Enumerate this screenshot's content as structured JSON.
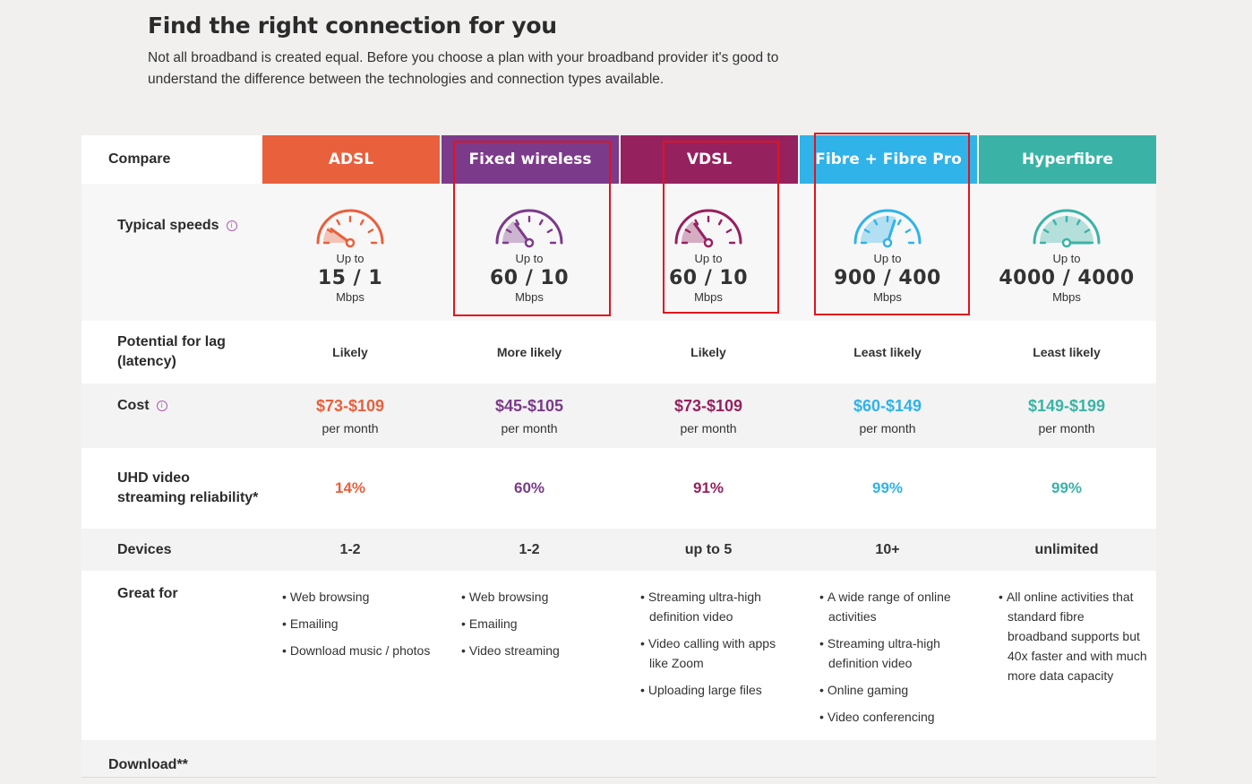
{
  "intro": {
    "title": "Find the right connection for you",
    "text": "Not all broadband is created equal. Before you choose a plan with your broadband provider it's good to understand the difference between the technologies and connection types available."
  },
  "labels": {
    "compare": "Compare",
    "typical_speeds": "Typical speeds",
    "lag": "Potential for lag (latency)",
    "cost": "Cost",
    "uhd": "UHD video streaming reliability*",
    "devices": "Devices",
    "great_for": "Great for",
    "download": "Download**",
    "info_glyph": "i",
    "up_to": "Up to",
    "mbps": "Mbps",
    "per_month": "per month"
  },
  "columns": [
    {
      "name": "ADSL",
      "color": "#e8603c",
      "gauge_level": 0.2,
      "speed": "15 / 1",
      "lag": "Likely",
      "cost": "$73-$109",
      "uhd": "14%",
      "devices": "1-2",
      "great_for": [
        "Web browsing",
        "Emailing",
        "Download music / photos"
      ]
    },
    {
      "name": "Fixed wireless",
      "color": "#7c3a8a",
      "gauge_level": 0.3,
      "speed": "60 / 10",
      "lag": "More likely",
      "cost": "$45-$105",
      "uhd": "60%",
      "devices": "1-2",
      "great_for": [
        "Web browsing",
        "Emailing",
        "Video streaming"
      ]
    },
    {
      "name": "VDSL",
      "color": "#96215f",
      "gauge_level": 0.3,
      "speed": "60 / 10",
      "lag": "Likely",
      "cost": "$73-$109",
      "uhd": "91%",
      "devices": "up to 5",
      "great_for": [
        "Streaming ultra-high definition video",
        "Video calling with apps like Zoom",
        "Uploading large files"
      ]
    },
    {
      "name": "Fibre + Fibre Pro",
      "color": "#30b3e8",
      "gauge_level": 0.6,
      "speed": "900 / 400",
      "lag": "Least likely",
      "cost": "$60-$149",
      "uhd": "99%",
      "devices": "10+",
      "great_for": [
        "A wide range of online activities",
        "Streaming ultra-high definition video",
        "Online gaming",
        "Video conferencing"
      ]
    },
    {
      "name": "Hyperfibre",
      "color": "#3ab3a6",
      "gauge_level": 1.0,
      "speed": "4000 / 4000",
      "lag": "Least likely",
      "cost": "$149-$199",
      "uhd": "99%",
      "devices": "unlimited",
      "great_for": [
        "All online activities that standard fibre broadband supports but 40x faster and with much more data capacity"
      ]
    }
  ]
}
